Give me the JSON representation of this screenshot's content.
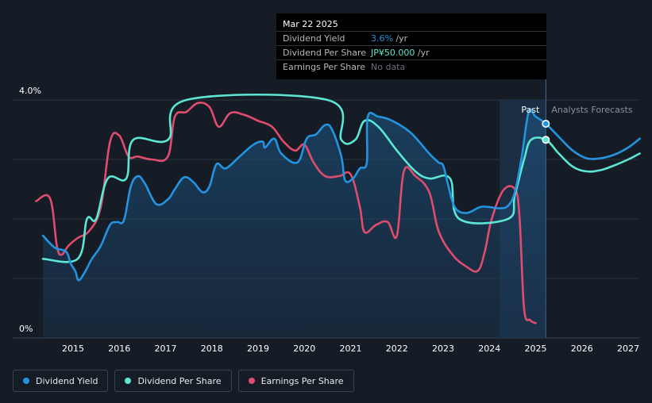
{
  "chart_data": {
    "type": "line",
    "title": "",
    "x_ticks": [
      "2015",
      "2016",
      "2017",
      "2018",
      "2019",
      "2020",
      "2021",
      "2022",
      "2023",
      "2024",
      "2025",
      "2026",
      "2027"
    ],
    "y_ticks": [
      "4.0%",
      "0%"
    ],
    "ylim": [
      0,
      4.0
    ],
    "grid": true,
    "region_labels": {
      "past": "Past",
      "forecast": "Analysts Forecasts"
    },
    "forecast_start": 2025.22,
    "highlight_start": 2024.22,
    "series": [
      {
        "name": "Dividend Yield",
        "color": "#2394df",
        "points": [
          [
            2014.35,
            1.72
          ],
          [
            2014.6,
            1.52
          ],
          [
            2014.85,
            1.45
          ],
          [
            2014.95,
            1.25
          ],
          [
            2015.05,
            1.12
          ],
          [
            2015.12,
            0.97
          ],
          [
            2015.25,
            1.1
          ],
          [
            2015.4,
            1.32
          ],
          [
            2015.6,
            1.55
          ],
          [
            2015.8,
            1.9
          ],
          [
            2015.95,
            1.95
          ],
          [
            2016.1,
            1.98
          ],
          [
            2016.25,
            2.55
          ],
          [
            2016.4,
            2.72
          ],
          [
            2016.55,
            2.6
          ],
          [
            2016.8,
            2.25
          ],
          [
            2017.05,
            2.33
          ],
          [
            2017.2,
            2.5
          ],
          [
            2017.4,
            2.7
          ],
          [
            2017.6,
            2.62
          ],
          [
            2017.8,
            2.45
          ],
          [
            2017.95,
            2.55
          ],
          [
            2018.1,
            2.92
          ],
          [
            2018.3,
            2.85
          ],
          [
            2018.6,
            3.05
          ],
          [
            2018.9,
            3.25
          ],
          [
            2019.1,
            3.3
          ],
          [
            2019.15,
            3.2
          ],
          [
            2019.35,
            3.35
          ],
          [
            2019.5,
            3.1
          ],
          [
            2019.85,
            2.95
          ],
          [
            2020.05,
            3.35
          ],
          [
            2020.25,
            3.42
          ],
          [
            2020.45,
            3.58
          ],
          [
            2020.6,
            3.5
          ],
          [
            2020.8,
            3.05
          ],
          [
            2020.88,
            2.65
          ],
          [
            2021.05,
            2.68
          ],
          [
            2021.2,
            2.85
          ],
          [
            2021.35,
            2.95
          ],
          [
            2021.37,
            3.72
          ],
          [
            2021.6,
            3.72
          ],
          [
            2021.9,
            3.65
          ],
          [
            2022.3,
            3.45
          ],
          [
            2022.7,
            3.1
          ],
          [
            2022.9,
            2.95
          ],
          [
            2023.0,
            2.9
          ],
          [
            2023.1,
            2.6
          ],
          [
            2023.25,
            2.2
          ],
          [
            2023.5,
            2.1
          ],
          [
            2023.8,
            2.2
          ],
          [
            2024.0,
            2.2
          ],
          [
            2024.22,
            2.18
          ],
          [
            2024.4,
            2.22
          ],
          [
            2024.55,
            2.45
          ],
          [
            2024.7,
            3.05
          ],
          [
            2024.85,
            3.8
          ],
          [
            2025.0,
            3.72
          ],
          [
            2025.22,
            3.6
          ],
          [
            2025.5,
            3.38
          ],
          [
            2025.8,
            3.15
          ],
          [
            2026.1,
            3.02
          ],
          [
            2026.4,
            3.02
          ],
          [
            2026.7,
            3.08
          ],
          [
            2027.0,
            3.2
          ],
          [
            2027.25,
            3.35
          ]
        ]
      },
      {
        "name": "Dividend Per Share",
        "color": "#5ce6d4",
        "points": [
          [
            2014.35,
            1.33
          ],
          [
            2015.1,
            1.33
          ],
          [
            2015.3,
            2.0
          ],
          [
            2015.5,
            2.0
          ],
          [
            2015.75,
            2.68
          ],
          [
            2016.15,
            2.68
          ],
          [
            2016.3,
            3.33
          ],
          [
            2017.05,
            3.33
          ],
          [
            2017.45,
            4.0
          ],
          [
            2020.5,
            4.0
          ],
          [
            2020.8,
            3.33
          ],
          [
            2021.1,
            3.33
          ],
          [
            2021.3,
            3.65
          ],
          [
            2021.6,
            3.55
          ],
          [
            2022.0,
            3.15
          ],
          [
            2022.4,
            2.8
          ],
          [
            2022.7,
            2.68
          ],
          [
            2023.15,
            2.68
          ],
          [
            2023.35,
            2.0
          ],
          [
            2024.4,
            2.0
          ],
          [
            2024.55,
            2.4
          ],
          [
            2024.75,
            3.0
          ],
          [
            2024.9,
            3.33
          ],
          [
            2025.22,
            3.33
          ],
          [
            2025.5,
            3.1
          ],
          [
            2025.8,
            2.88
          ],
          [
            2026.1,
            2.8
          ],
          [
            2026.4,
            2.82
          ],
          [
            2026.7,
            2.9
          ],
          [
            2027.0,
            3.0
          ],
          [
            2027.25,
            3.1
          ]
        ]
      },
      {
        "name": "Earnings Per Share",
        "color": "#e04c6d",
        "points": [
          [
            2014.2,
            2.3
          ],
          [
            2014.5,
            2.35
          ],
          [
            2014.65,
            1.55
          ],
          [
            2014.75,
            1.4
          ],
          [
            2014.9,
            1.55
          ],
          [
            2015.1,
            1.68
          ],
          [
            2015.35,
            1.8
          ],
          [
            2015.6,
            2.2
          ],
          [
            2015.8,
            3.3
          ],
          [
            2016.0,
            3.4
          ],
          [
            2016.2,
            3.05
          ],
          [
            2016.4,
            3.05
          ],
          [
            2016.7,
            3.0
          ],
          [
            2017.05,
            3.05
          ],
          [
            2017.2,
            3.72
          ],
          [
            2017.45,
            3.8
          ],
          [
            2017.7,
            3.95
          ],
          [
            2017.95,
            3.88
          ],
          [
            2018.15,
            3.55
          ],
          [
            2018.4,
            3.78
          ],
          [
            2018.7,
            3.75
          ],
          [
            2019.0,
            3.65
          ],
          [
            2019.3,
            3.55
          ],
          [
            2019.55,
            3.3
          ],
          [
            2019.8,
            3.15
          ],
          [
            2020.0,
            3.25
          ],
          [
            2020.2,
            2.95
          ],
          [
            2020.45,
            2.72
          ],
          [
            2020.75,
            2.72
          ],
          [
            2021.0,
            2.75
          ],
          [
            2021.2,
            2.2
          ],
          [
            2021.3,
            1.78
          ],
          [
            2021.55,
            1.9
          ],
          [
            2021.8,
            1.95
          ],
          [
            2022.0,
            1.72
          ],
          [
            2022.15,
            2.8
          ],
          [
            2022.4,
            2.72
          ],
          [
            2022.7,
            2.45
          ],
          [
            2022.9,
            1.8
          ],
          [
            2023.2,
            1.4
          ],
          [
            2023.5,
            1.2
          ],
          [
            2023.75,
            1.13
          ],
          [
            2023.9,
            1.45
          ],
          [
            2024.05,
            2.0
          ],
          [
            2024.3,
            2.48
          ],
          [
            2024.55,
            2.5
          ],
          [
            2024.65,
            2.05
          ],
          [
            2024.75,
            0.5
          ],
          [
            2024.88,
            0.3
          ],
          [
            2025.0,
            0.25
          ]
        ]
      }
    ],
    "markers": [
      {
        "series": "Dividend Yield",
        "x": 2025.22,
        "y": 3.6
      },
      {
        "series": "Dividend Per Share",
        "x": 2025.22,
        "y": 3.33
      }
    ]
  },
  "tooltip": {
    "date": "Mar 22 2025",
    "rows": [
      {
        "label": "Dividend Yield",
        "value": "3.6%",
        "unit": " /yr",
        "color": "#2394df"
      },
      {
        "label": "Dividend Per Share",
        "value": "JP¥50.000",
        "unit": " /yr",
        "color": "#5ce6d4"
      },
      {
        "label": "Earnings Per Share",
        "value": "No data",
        "unit": "",
        "color": "#6b7078"
      }
    ]
  },
  "legend": [
    {
      "label": "Dividend Yield",
      "color": "#2394df"
    },
    {
      "label": "Dividend Per Share",
      "color": "#5ce6d4"
    },
    {
      "label": "Earnings Per Share",
      "color": "#e04c6d"
    }
  ]
}
